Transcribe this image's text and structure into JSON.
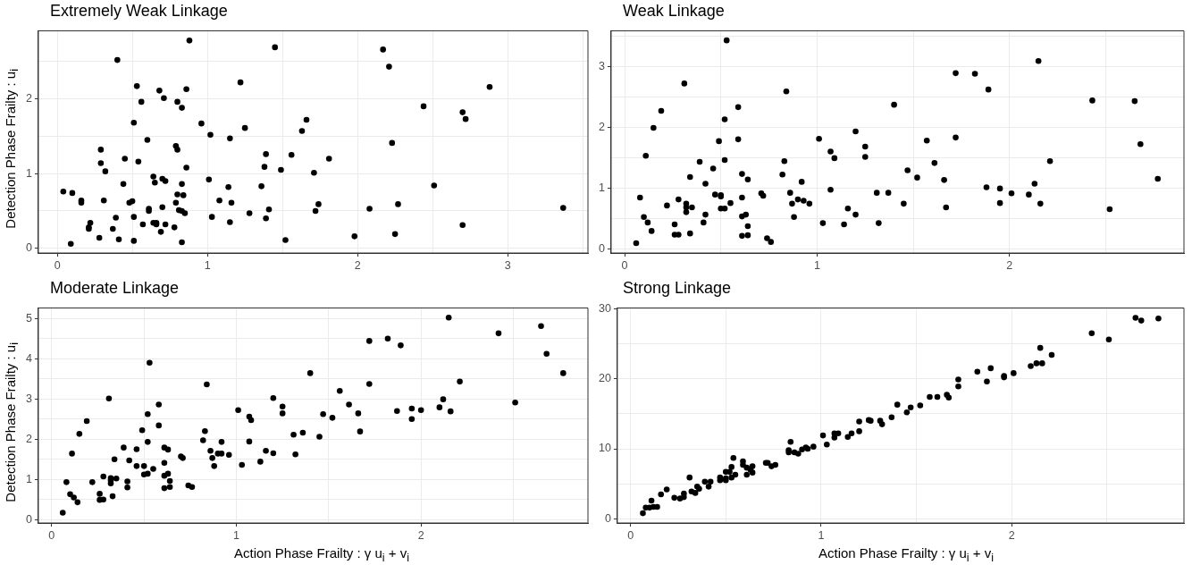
{
  "chart_data": [
    {
      "type": "scatter",
      "title": "Extremely Weak Linkage",
      "ylabel": "Detection Phase Frailty : u$_{i}$",
      "color": "#000000",
      "marker": "circle",
      "grid": true,
      "xlim": [
        -0.126,
        3.535
      ],
      "ylim": [
        -0.063,
        2.91
      ],
      "xticks": [
        0,
        {
          "value": 0.5,
          "label": null
        },
        1,
        {
          "value": 1.5,
          "label": null
        },
        2,
        {
          "value": 2.5,
          "label": null
        },
        3,
        {
          "value": 3.5,
          "label": null
        }
      ],
      "yticks": [
        0,
        {
          "value": 0.5,
          "label": null
        },
        1,
        {
          "value": 1.5,
          "label": null
        },
        2,
        {
          "value": 2.5,
          "label": null
        }
      ],
      "x": [
        0.04,
        0.09,
        0.1,
        0.16,
        0.16,
        0.21,
        0.21,
        0.22,
        0.28,
        0.29,
        0.29,
        0.31,
        0.32,
        0.37,
        0.39,
        0.4,
        0.41,
        0.44,
        0.45,
        0.48,
        0.5,
        0.51,
        0.51,
        0.51,
        0.53,
        0.54,
        0.56,
        0.57,
        0.6,
        0.61,
        0.61,
        0.64,
        0.64,
        0.65,
        0.66,
        0.66,
        0.68,
        0.69,
        0.7,
        0.7,
        0.71,
        0.72,
        0.72,
        0.78,
        0.79,
        0.79,
        0.8,
        0.8,
        0.8,
        0.81,
        0.83,
        0.83,
        0.83,
        0.83,
        0.84,
        0.85,
        0.86,
        0.86,
        0.88,
        0.96,
        1.01,
        1.02,
        1.03,
        1.08,
        1.14,
        1.15,
        1.15,
        1.16,
        1.22,
        1.25,
        1.28,
        1.36,
        1.38,
        1.39,
        1.39,
        1.41,
        1.45,
        1.49,
        1.52,
        1.56,
        1.63,
        1.66,
        1.71,
        1.72,
        1.74,
        1.81,
        1.98,
        2.08,
        2.17,
        2.21,
        2.23,
        2.25,
        2.27,
        2.44,
        2.51,
        2.7,
        2.7,
        2.72,
        2.88,
        3.37
      ],
      "values": [
        0.76,
        0.06,
        0.74,
        0.64,
        0.61,
        0.28,
        0.26,
        0.34,
        0.14,
        1.32,
        1.14,
        0.64,
        1.03,
        0.26,
        0.41,
        2.52,
        0.12,
        0.86,
        1.2,
        0.61,
        0.63,
        1.68,
        0.42,
        0.1,
        2.17,
        1.16,
        1.96,
        0.32,
        1.45,
        0.53,
        0.5,
        0.96,
        0.34,
        0.88,
        0.32,
        0.34,
        2.11,
        0.22,
        0.55,
        0.93,
        2.01,
        0.32,
        0.9,
        0.28,
        0.61,
        1.37,
        1.32,
        1.96,
        0.72,
        0.51,
        1.88,
        0.86,
        0.5,
        0.08,
        0.71,
        0.47,
        2.13,
        1.08,
        2.78,
        1.67,
        0.92,
        1.52,
        0.42,
        0.64,
        0.82,
        0.35,
        1.47,
        0.61,
        2.22,
        1.61,
        0.47,
        0.83,
        1.09,
        1.26,
        0.4,
        0.52,
        2.69,
        1.05,
        0.11,
        1.25,
        1.57,
        1.72,
        1.01,
        0.5,
        0.59,
        1.2,
        0.16,
        0.53,
        2.66,
        2.43,
        1.41,
        0.19,
        0.59,
        1.9,
        0.84,
        1.82,
        0.31,
        1.73,
        2.16,
        0.54
      ]
    },
    {
      "type": "scatter",
      "title": "Weak Linkage",
      "color": "#000000",
      "marker": "circle",
      "grid": true,
      "xlim": [
        -0.07,
        2.906
      ],
      "ylim": [
        -0.072,
        3.587
      ],
      "xticks": [
        0,
        {
          "value": 0.5,
          "label": null
        },
        1,
        {
          "value": 1.5,
          "label": null
        },
        2,
        {
          "value": 2.5,
          "label": null
        }
      ],
      "yticks": [
        0,
        {
          "value": 0.5,
          "label": null
        },
        1,
        {
          "value": 1.5,
          "label": null
        },
        2,
        {
          "value": 2.5,
          "label": null
        },
        3,
        {
          "value": 3.5,
          "label": null
        }
      ],
      "x": [
        0.06,
        0.08,
        0.1,
        0.11,
        0.12,
        0.14,
        0.15,
        0.19,
        0.22,
        0.26,
        0.26,
        0.28,
        0.28,
        0.31,
        0.32,
        0.32,
        0.32,
        0.34,
        0.34,
        0.35,
        0.39,
        0.41,
        0.42,
        0.42,
        0.46,
        0.47,
        0.49,
        0.5,
        0.5,
        0.5,
        0.52,
        0.52,
        0.52,
        0.53,
        0.55,
        0.59,
        0.59,
        0.61,
        0.61,
        0.61,
        0.61,
        0.63,
        0.64,
        0.64,
        0.64,
        0.71,
        0.72,
        0.74,
        0.76,
        0.82,
        0.83,
        0.84,
        0.86,
        0.87,
        0.88,
        0.9,
        0.92,
        0.93,
        0.96,
        1.01,
        1.03,
        1.07,
        1.07,
        1.09,
        1.14,
        1.16,
        1.2,
        1.2,
        1.25,
        1.25,
        1.31,
        1.32,
        1.37,
        1.4,
        1.45,
        1.47,
        1.52,
        1.57,
        1.61,
        1.66,
        1.67,
        1.72,
        1.72,
        1.82,
        1.88,
        1.89,
        1.95,
        1.95,
        2.01,
        2.1,
        2.13,
        2.15,
        2.16,
        2.21,
        2.43,
        2.52,
        2.65,
        2.68,
        2.77
      ],
      "values": [
        0.09,
        0.84,
        0.52,
        1.53,
        0.43,
        0.29,
        1.99,
        2.27,
        0.71,
        0.4,
        0.23,
        0.23,
        0.81,
        2.72,
        0.74,
        0.68,
        0.6,
        0.25,
        1.18,
        0.68,
        1.43,
        0.43,
        0.56,
        1.07,
        1.32,
        0.89,
        1.77,
        0.88,
        0.86,
        0.66,
        1.46,
        0.66,
        2.13,
        3.43,
        0.75,
        2.33,
        1.8,
        0.21,
        1.23,
        0.84,
        0.53,
        0.56,
        1.14,
        0.37,
        0.22,
        0.91,
        0.87,
        0.17,
        0.11,
        1.22,
        1.44,
        2.59,
        0.92,
        0.74,
        0.52,
        0.81,
        1.1,
        0.79,
        0.74,
        1.81,
        0.42,
        1.6,
        0.97,
        1.49,
        0.4,
        0.66,
        0.56,
        1.93,
        1.68,
        1.51,
        0.92,
        0.42,
        0.92,
        2.37,
        0.74,
        1.29,
        1.17,
        1.78,
        1.41,
        1.13,
        0.68,
        1.83,
        2.89,
        2.88,
        1.01,
        2.62,
        0.99,
        0.75,
        0.91,
        0.89,
        1.07,
        3.09,
        0.74,
        1.44,
        2.44,
        0.65,
        2.43,
        1.72,
        1.15
      ]
    },
    {
      "type": "scatter",
      "title": "Moderate Linkage",
      "ylabel": "Detection Phase Frailty : u$_{i}$",
      "xlabel": "Action Phase Frailty : γ u$_{i}$ + v$_{i}$",
      "color": "#000000",
      "marker": "circle",
      "grid": true,
      "xlim": [
        -0.072,
        2.904
      ],
      "ylim": [
        -0.084,
        5.26
      ],
      "xticks": [
        0,
        {
          "value": 0.5,
          "label": null
        },
        1,
        {
          "value": 1.5,
          "label": null
        },
        2,
        {
          "value": 2.5,
          "label": null
        }
      ],
      "yticks": [
        0,
        {
          "value": 0.5,
          "label": null
        },
        1,
        {
          "value": 1.5,
          "label": null
        },
        2,
        {
          "value": 2.5,
          "label": null
        },
        3,
        {
          "value": 3.5,
          "label": null
        },
        4,
        {
          "value": 4.5,
          "label": null
        },
        5
      ],
      "x": [
        0.06,
        0.08,
        0.1,
        0.11,
        0.12,
        0.14,
        0.15,
        0.19,
        0.22,
        0.26,
        0.26,
        0.28,
        0.28,
        0.31,
        0.32,
        0.32,
        0.32,
        0.33,
        0.34,
        0.35,
        0.39,
        0.41,
        0.41,
        0.42,
        0.46,
        0.46,
        0.49,
        0.5,
        0.5,
        0.52,
        0.52,
        0.52,
        0.53,
        0.55,
        0.58,
        0.58,
        0.61,
        0.61,
        0.61,
        0.61,
        0.63,
        0.63,
        0.64,
        0.64,
        0.7,
        0.71,
        0.74,
        0.76,
        0.82,
        0.83,
        0.84,
        0.86,
        0.87,
        0.88,
        0.9,
        0.92,
        0.92,
        0.96,
        1.01,
        1.03,
        1.07,
        1.07,
        1.08,
        1.13,
        1.16,
        1.2,
        1.2,
        1.25,
        1.25,
        1.31,
        1.32,
        1.36,
        1.4,
        1.45,
        1.47,
        1.52,
        1.56,
        1.61,
        1.66,
        1.67,
        1.72,
        1.72,
        1.82,
        1.87,
        1.89,
        1.95,
        1.95,
        2.0,
        2.1,
        2.12,
        2.15,
        2.16,
        2.21,
        2.42,
        2.51,
        2.65,
        2.68,
        2.77
      ],
      "values": [
        0.17,
        0.93,
        0.63,
        1.64,
        0.55,
        0.43,
        2.13,
        2.45,
        0.93,
        0.64,
        0.49,
        0.5,
        1.07,
        3.01,
        1.03,
        0.97,
        0.9,
        0.58,
        1.5,
        1.02,
        1.79,
        0.8,
        0.95,
        1.47,
        1.75,
        1.33,
        2.22,
        1.12,
        1.33,
        1.93,
        1.14,
        2.62,
        3.9,
        1.26,
        2.86,
        2.34,
        0.78,
        1.79,
        1.41,
        1.09,
        1.14,
        1.74,
        0.96,
        0.81,
        1.57,
        1.53,
        0.85,
        0.81,
        1.97,
        2.2,
        3.36,
        1.71,
        1.53,
        1.33,
        1.64,
        1.93,
        1.64,
        1.61,
        2.72,
        1.36,
        2.56,
        1.94,
        2.47,
        1.44,
        1.71,
        1.65,
        3.02,
        2.81,
        2.64,
        2.11,
        1.62,
        2.16,
        3.64,
        2.06,
        2.62,
        2.53,
        3.2,
        2.86,
        2.64,
        2.19,
        3.37,
        4.44,
        4.5,
        2.7,
        4.33,
        2.5,
        2.76,
        2.72,
        2.79,
        2.99,
        5.02,
        2.69,
        3.43,
        4.63,
        2.91,
        4.81,
        4.12,
        3.64
      ]
    },
    {
      "type": "scatter",
      "title": "Strong Linkage",
      "xlabel": "Action Phase Frailty : γ u$_{i}$ + v$_{i}$",
      "color": "#000000",
      "marker": "circle",
      "grid": true,
      "xlim": [
        -0.069,
        2.904
      ],
      "ylim": [
        -0.59,
        30.1
      ],
      "xticks": [
        0,
        {
          "value": 0.5,
          "label": null
        },
        1,
        {
          "value": 1.5,
          "label": null
        },
        2,
        {
          "value": 2.5,
          "label": null
        }
      ],
      "yticks": [
        0,
        {
          "value": 5,
          "label": null
        },
        10,
        {
          "value": 15,
          "label": null
        },
        20,
        {
          "value": 25,
          "label": null
        },
        30
      ],
      "x": [
        0.065,
        0.08,
        0.1,
        0.11,
        0.12,
        0.14,
        0.16,
        0.19,
        0.23,
        0.26,
        0.28,
        0.28,
        0.31,
        0.32,
        0.34,
        0.35,
        0.36,
        0.39,
        0.41,
        0.42,
        0.47,
        0.47,
        0.5,
        0.5,
        0.5,
        0.52,
        0.53,
        0.53,
        0.54,
        0.55,
        0.59,
        0.59,
        0.61,
        0.61,
        0.63,
        0.64,
        0.64,
        0.71,
        0.72,
        0.74,
        0.76,
        0.83,
        0.83,
        0.84,
        0.86,
        0.88,
        0.9,
        0.92,
        0.93,
        0.96,
        1.01,
        1.03,
        1.07,
        1.07,
        1.09,
        1.14,
        1.16,
        1.2,
        1.2,
        1.25,
        1.26,
        1.31,
        1.32,
        1.37,
        1.4,
        1.45,
        1.47,
        1.52,
        1.57,
        1.61,
        1.66,
        1.67,
        1.72,
        1.72,
        1.82,
        1.87,
        1.89,
        1.96,
        1.96,
        2.01,
        2.1,
        2.13,
        2.15,
        2.16,
        2.21,
        2.42,
        2.51,
        2.65,
        2.68,
        2.77
      ],
      "values": [
        0.8,
        1.6,
        1.6,
        2.6,
        1.7,
        1.7,
        3.5,
        4.2,
        3.0,
        2.9,
        3.1,
        3.6,
        5.9,
        3.9,
        3.7,
        4.6,
        4.3,
        5.3,
        4.6,
        5.3,
        5.9,
        5.5,
        6.7,
        5.8,
        5.5,
        6.7,
        7.4,
        5.9,
        8.7,
        6.3,
        8.2,
        7.7,
        7.3,
        6.3,
        7.0,
        7.5,
        6.6,
        8.0,
        8.0,
        7.5,
        7.7,
        9.5,
        9.8,
        11.0,
        9.5,
        9.3,
        9.9,
        10.2,
        10.0,
        10.3,
        11.9,
        10.6,
        11.6,
        12.2,
        12.2,
        11.7,
        12.2,
        12.5,
        13.9,
        14.1,
        14.0,
        14.0,
        13.5,
        14.5,
        16.3,
        15.2,
        15.9,
        16.2,
        17.4,
        17.4,
        17.7,
        17.3,
        18.9,
        19.9,
        21.0,
        19.6,
        21.5,
        20.4,
        20.2,
        20.8,
        21.8,
        22.2,
        24.4,
        22.2,
        23.4,
        26.5,
        25.6,
        28.7,
        28.3,
        28.6
      ]
    }
  ]
}
